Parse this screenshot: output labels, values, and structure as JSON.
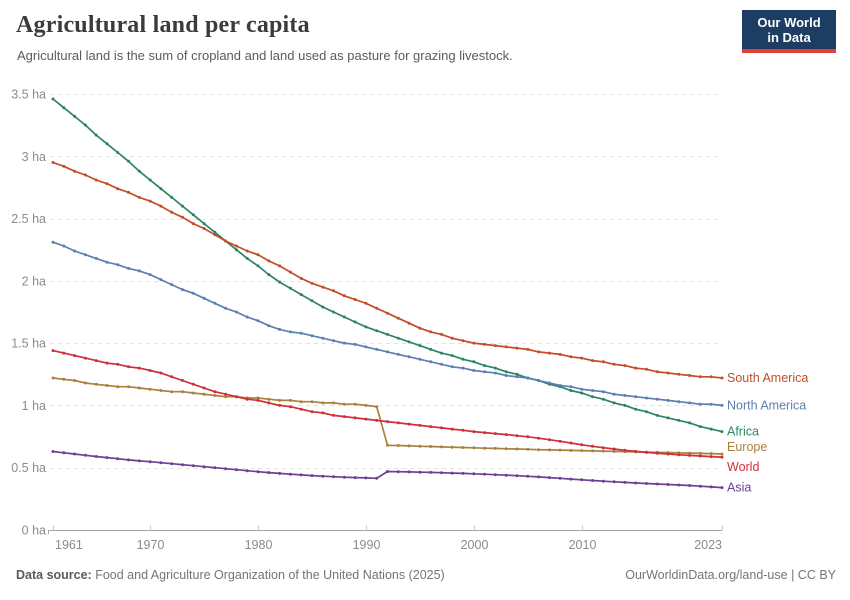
{
  "header": {
    "title": "Agricultural land per capita",
    "subtitle": "Agricultural land is the sum of cropland and land used as pasture for grazing livestock.",
    "logo": {
      "line1": "Our World",
      "line2": "in Data",
      "bg_color": "#1d3d63",
      "accent_color": "#e0403a"
    }
  },
  "footer": {
    "source_label": "Data source:",
    "source_text": " Food and Agriculture Organization of the United Nations (2025)",
    "link_text": "OurWorldinData.org/land-use",
    "separator": " | ",
    "license_text": "CC BY"
  },
  "chart_data": {
    "type": "line",
    "unit": "ha",
    "grid": "horizontal dashed",
    "legend_position": "right end-of-line labels",
    "xlim": [
      1961,
      2023
    ],
    "ylim": [
      0,
      3.5
    ],
    "x_ticks": [
      1961,
      1970,
      1980,
      1990,
      2000,
      2010,
      2023
    ],
    "x_tick_labels": [
      "1961",
      "1970",
      "1980",
      "1990",
      "2000",
      "2010",
      "2023"
    ],
    "y_ticks": [
      0,
      0.5,
      1,
      1.5,
      2,
      2.5,
      3,
      3.5
    ],
    "y_tick_labels": [
      "0 ha",
      "0.5 ha",
      "1 ha",
      "1.5 ha",
      "2 ha",
      "2.5 ha",
      "3 ha",
      "3.5 ha"
    ],
    "axis_color": "#a5a5a5",
    "grid_color": "#e2e2e2",
    "tick_mark_color": "#c9c9c9",
    "years": [
      1961,
      1962,
      1963,
      1964,
      1965,
      1966,
      1967,
      1968,
      1969,
      1970,
      1971,
      1972,
      1973,
      1974,
      1975,
      1976,
      1977,
      1978,
      1979,
      1980,
      1981,
      1982,
      1983,
      1984,
      1985,
      1986,
      1987,
      1988,
      1989,
      1990,
      1991,
      1992,
      1993,
      1994,
      1995,
      1996,
      1997,
      1998,
      1999,
      2000,
      2001,
      2002,
      2003,
      2004,
      2005,
      2006,
      2007,
      2008,
      2009,
      2010,
      2011,
      2012,
      2013,
      2014,
      2015,
      2016,
      2017,
      2018,
      2019,
      2020,
      2021,
      2022,
      2023
    ],
    "series": [
      {
        "id": "africa",
        "name": "Africa",
        "color": "#2C8465",
        "label_dy": 0,
        "values": [
          3.46,
          3.39,
          3.32,
          3.25,
          3.17,
          3.1,
          3.03,
          2.96,
          2.88,
          2.81,
          2.74,
          2.67,
          2.6,
          2.53,
          2.46,
          2.39,
          2.32,
          2.25,
          2.18,
          2.12,
          2.05,
          1.99,
          1.94,
          1.89,
          1.84,
          1.79,
          1.75,
          1.71,
          1.67,
          1.63,
          1.6,
          1.57,
          1.54,
          1.51,
          1.48,
          1.45,
          1.42,
          1.4,
          1.37,
          1.35,
          1.32,
          1.3,
          1.27,
          1.25,
          1.22,
          1.2,
          1.17,
          1.15,
          1.12,
          1.1,
          1.07,
          1.05,
          1.02,
          1.0,
          0.97,
          0.95,
          0.92,
          0.9,
          0.88,
          0.86,
          0.83,
          0.81,
          0.79
        ]
      },
      {
        "id": "south-america",
        "name": "South America",
        "color": "#C24D28",
        "label_dy": 0,
        "values": [
          2.95,
          2.92,
          2.88,
          2.85,
          2.81,
          2.78,
          2.74,
          2.71,
          2.67,
          2.64,
          2.6,
          2.55,
          2.51,
          2.46,
          2.42,
          2.37,
          2.32,
          2.28,
          2.24,
          2.21,
          2.16,
          2.12,
          2.07,
          2.02,
          1.98,
          1.95,
          1.92,
          1.88,
          1.85,
          1.82,
          1.78,
          1.74,
          1.7,
          1.66,
          1.62,
          1.59,
          1.57,
          1.54,
          1.52,
          1.5,
          1.49,
          1.48,
          1.47,
          1.46,
          1.45,
          1.43,
          1.42,
          1.41,
          1.39,
          1.38,
          1.36,
          1.35,
          1.33,
          1.32,
          1.3,
          1.29,
          1.27,
          1.26,
          1.25,
          1.24,
          1.23,
          1.23,
          1.22
        ]
      },
      {
        "id": "north-america",
        "name": "North America",
        "color": "#5C7FB2",
        "label_dy": 0,
        "values": [
          2.31,
          2.28,
          2.24,
          2.21,
          2.18,
          2.15,
          2.13,
          2.1,
          2.08,
          2.05,
          2.01,
          1.97,
          1.93,
          1.9,
          1.86,
          1.82,
          1.78,
          1.75,
          1.71,
          1.68,
          1.64,
          1.61,
          1.59,
          1.58,
          1.56,
          1.54,
          1.52,
          1.5,
          1.49,
          1.47,
          1.45,
          1.43,
          1.41,
          1.39,
          1.37,
          1.35,
          1.33,
          1.31,
          1.3,
          1.28,
          1.27,
          1.26,
          1.24,
          1.23,
          1.22,
          1.2,
          1.18,
          1.16,
          1.15,
          1.13,
          1.12,
          1.11,
          1.09,
          1.08,
          1.07,
          1.06,
          1.05,
          1.04,
          1.03,
          1.02,
          1.01,
          1.01,
          1.0
        ]
      },
      {
        "id": "europe",
        "name": "Europe",
        "color": "#A9803C",
        "label_dy": -7,
        "values": [
          1.22,
          1.21,
          1.2,
          1.18,
          1.17,
          1.16,
          1.15,
          1.15,
          1.14,
          1.13,
          1.12,
          1.11,
          1.11,
          1.1,
          1.09,
          1.08,
          1.07,
          1.07,
          1.06,
          1.06,
          1.05,
          1.04,
          1.04,
          1.03,
          1.03,
          1.02,
          1.02,
          1.01,
          1.01,
          1.0,
          0.99,
          0.68,
          0.678,
          0.675,
          0.672,
          0.67,
          0.667,
          0.665,
          0.662,
          0.66,
          0.657,
          0.655,
          0.652,
          0.65,
          0.648,
          0.645,
          0.643,
          0.641,
          0.639,
          0.637,
          0.635,
          0.633,
          0.631,
          0.629,
          0.627,
          0.625,
          0.623,
          0.621,
          0.619,
          0.617,
          0.615,
          0.613,
          0.61
        ]
      },
      {
        "id": "world",
        "name": "World",
        "color": "#CE2F3B",
        "label_dy": 10,
        "values": [
          1.44,
          1.42,
          1.4,
          1.38,
          1.36,
          1.34,
          1.33,
          1.31,
          1.3,
          1.28,
          1.26,
          1.23,
          1.2,
          1.17,
          1.14,
          1.11,
          1.09,
          1.07,
          1.05,
          1.04,
          1.02,
          1.0,
          0.99,
          0.97,
          0.95,
          0.94,
          0.92,
          0.91,
          0.9,
          0.89,
          0.88,
          0.87,
          0.86,
          0.85,
          0.84,
          0.83,
          0.82,
          0.81,
          0.8,
          0.79,
          0.782,
          0.774,
          0.766,
          0.757,
          0.748,
          0.737,
          0.725,
          0.712,
          0.698,
          0.684,
          0.672,
          0.661,
          0.65,
          0.64,
          0.631,
          0.623,
          0.616,
          0.61,
          0.604,
          0.599,
          0.594,
          0.589,
          0.585
        ]
      },
      {
        "id": "asia",
        "name": "Asia",
        "color": "#6D3E91",
        "label_dy": 0,
        "values": [
          0.63,
          0.62,
          0.61,
          0.6,
          0.59,
          0.581,
          0.572,
          0.563,
          0.555,
          0.548,
          0.54,
          0.532,
          0.524,
          0.516,
          0.508,
          0.5,
          0.492,
          0.484,
          0.476,
          0.468,
          0.461,
          0.454,
          0.448,
          0.442,
          0.437,
          0.432,
          0.428,
          0.424,
          0.421,
          0.418,
          0.415,
          0.47,
          0.468,
          0.466,
          0.464,
          0.462,
          0.46,
          0.457,
          0.454,
          0.451,
          0.448,
          0.444,
          0.44,
          0.436,
          0.431,
          0.426,
          0.421,
          0.415,
          0.409,
          0.403,
          0.397,
          0.392,
          0.387,
          0.382,
          0.377,
          0.373,
          0.369,
          0.365,
          0.361,
          0.357,
          0.352,
          0.346,
          0.34
        ]
      }
    ]
  }
}
